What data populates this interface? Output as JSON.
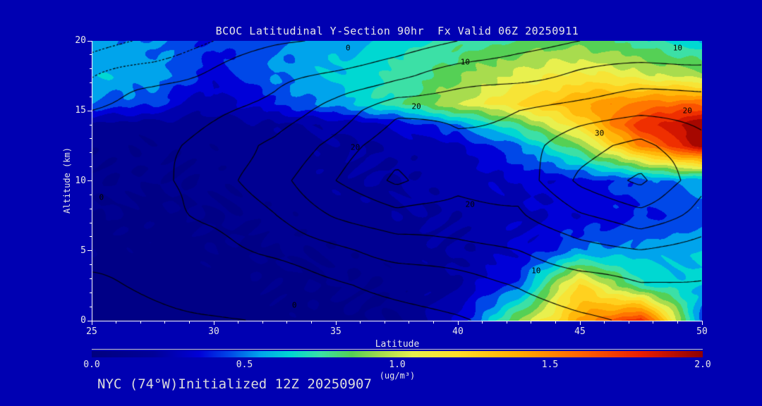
{
  "title": "BCOC Latitudinal Y-Section 90hr  Fx Valid 06Z 20250911",
  "footer": "NYC (74°W)Initialized 12Z 20250907",
  "axes": {
    "x": {
      "label": "Latitude",
      "min": 25,
      "max": 50,
      "major_ticks": [
        25,
        30,
        35,
        40,
        45,
        50
      ],
      "minor_step": 1
    },
    "y": {
      "label": "Altitude (km)",
      "min": 0,
      "max": 20,
      "major_ticks": [
        0,
        5,
        10,
        15,
        20
      ],
      "minor_step": 1
    }
  },
  "colorbar": {
    "min": 0.0,
    "max": 2.0,
    "tick_labels": [
      "0.0",
      "0.5",
      "1.0",
      "1.5",
      "2.0"
    ],
    "units": "(ug/m³)"
  },
  "colors": {
    "background": "#0000b2",
    "axis": "#ffffff",
    "text": "#e8e8e8",
    "contour": "#000000",
    "fill_low": "#000080"
  },
  "chart_data": {
    "type": "filled_contour",
    "title": "BCOC Latitudinal Y-Section 90hr  Fx Valid 06Z 20250911",
    "xlabel": "Latitude",
    "ylabel": "Altitude (km)",
    "xlim": [
      25,
      50
    ],
    "ylim": [
      0,
      20
    ],
    "fill_units": "ug/m3",
    "fill_range": [
      0.0,
      2.0
    ],
    "fill_level_step": 0.1,
    "colormap": [
      [
        0.0,
        "#000080"
      ],
      [
        0.2,
        "#000098"
      ],
      [
        0.35,
        "#0000d8"
      ],
      [
        0.45,
        "#0048e8"
      ],
      [
        0.55,
        "#00a4ec"
      ],
      [
        0.65,
        "#00d8d2"
      ],
      [
        0.75,
        "#3ce0a6"
      ],
      [
        0.85,
        "#55d055"
      ],
      [
        0.95,
        "#a8dc4e"
      ],
      [
        1.05,
        "#e8f04e"
      ],
      [
        1.2,
        "#ffde2a"
      ],
      [
        1.4,
        "#ffac00"
      ],
      [
        1.6,
        "#ff6400"
      ],
      [
        1.8,
        "#ea1e00"
      ],
      [
        2.0,
        "#8f0000"
      ]
    ],
    "fill": {
      "note": "BCOC concentration grid, rows ordered by ascending altitude",
      "lats": [
        25,
        27.5,
        30,
        32.5,
        35,
        37.5,
        40,
        42.5,
        45,
        47.5,
        50
      ],
      "alts": [
        0,
        2.5,
        5,
        7.5,
        10,
        12.5,
        14,
        15.5,
        17.5,
        20
      ],
      "values": [
        [
          0.05,
          0.05,
          0.05,
          0.06,
          0.08,
          0.1,
          0.3,
          0.9,
          1.4,
          1.8,
          0.45
        ],
        [
          0.06,
          0.05,
          0.06,
          0.08,
          0.1,
          0.12,
          0.2,
          0.45,
          1.25,
          0.7,
          0.6
        ],
        [
          0.08,
          0.06,
          0.08,
          0.1,
          0.12,
          0.15,
          0.2,
          0.3,
          0.5,
          0.55,
          0.6
        ],
        [
          0.1,
          0.08,
          0.1,
          0.12,
          0.15,
          0.18,
          0.22,
          0.28,
          0.32,
          0.38,
          0.45
        ],
        [
          0.12,
          0.1,
          0.12,
          0.15,
          0.18,
          0.2,
          0.25,
          0.3,
          0.35,
          0.45,
          0.55
        ],
        [
          0.13,
          0.12,
          0.13,
          0.15,
          0.18,
          0.22,
          0.28,
          0.5,
          0.9,
          1.5,
          1.95
        ],
        [
          0.15,
          0.14,
          0.15,
          0.18,
          0.22,
          0.3,
          0.5,
          0.8,
          1.2,
          1.75,
          2.0
        ],
        [
          0.5,
          0.42,
          0.22,
          0.4,
          0.55,
          0.75,
          1.0,
          1.2,
          1.4,
          1.55,
          1.6
        ],
        [
          0.6,
          0.55,
          0.35,
          0.5,
          0.62,
          0.72,
          0.88,
          1.05,
          1.15,
          1.05,
          0.95
        ],
        [
          0.55,
          0.5,
          0.4,
          0.5,
          0.55,
          0.65,
          0.75,
          0.8,
          0.85,
          0.75,
          0.6
        ]
      ]
    },
    "overlay_contours": {
      "note": "black line-contour field, rows ordered by ascending altitude, dashed below zero",
      "lats": [
        25,
        27.5,
        30,
        32.5,
        35,
        37.5,
        40,
        42.5,
        45,
        47.5,
        50
      ],
      "alts": [
        0,
        2.5,
        5,
        7.5,
        10,
        12.5,
        15,
        17.5,
        20
      ],
      "values": [
        [
          -1,
          -0.6,
          -0.2,
          0.4,
          1.5,
          3,
          4.5,
          6.5,
          9,
          11,
          10
        ],
        [
          0,
          0.8,
          1.5,
          2.5,
          4,
          6,
          8,
          10,
          13,
          15,
          14
        ],
        [
          1,
          2,
          3.5,
          6,
          9,
          12,
          13.5,
          15,
          18,
          20,
          18
        ],
        [
          1,
          3,
          6,
          10,
          15,
          19,
          18,
          19,
          25,
          28,
          23
        ],
        [
          0.5,
          3.5,
          8,
          13,
          20,
          26,
          21,
          22,
          31,
          36,
          27
        ],
        [
          1,
          3,
          7,
          11,
          17,
          23,
          21,
          22,
          28,
          32,
          26
        ],
        [
          0,
          1.5,
          4,
          7,
          12,
          19,
          19,
          20,
          22,
          24,
          24
        ],
        [
          -2.5,
          -1,
          1,
          3,
          6,
          9,
          12,
          14,
          16,
          17,
          17
        ],
        [
          -5,
          -3.5,
          -2,
          -0.5,
          0.5,
          2,
          5,
          8,
          10,
          11,
          12
        ]
      ],
      "levels": [
        -4,
        -2,
        0,
        5,
        10,
        15,
        20,
        25,
        30,
        35
      ],
      "negative_dashed": true
    },
    "contour_labels": [
      {
        "text": "0",
        "lat": 35.5,
        "alt": 19.5
      },
      {
        "text": "10",
        "lat": 40.3,
        "alt": 18.5
      },
      {
        "text": "10",
        "lat": 49.0,
        "alt": 19.5
      },
      {
        "text": "20",
        "lat": 38.3,
        "alt": 15.3
      },
      {
        "text": "20",
        "lat": 49.4,
        "alt": 15.0
      },
      {
        "text": "30",
        "lat": 45.8,
        "alt": 13.4
      },
      {
        "text": "20",
        "lat": 35.8,
        "alt": 12.4
      },
      {
        "text": "20",
        "lat": 40.5,
        "alt": 8.3
      },
      {
        "text": "0",
        "lat": 25.4,
        "alt": 8.8
      },
      {
        "text": "0",
        "lat": 33.3,
        "alt": 1.1
      },
      {
        "text": "10",
        "lat": 43.2,
        "alt": 3.6
      }
    ]
  }
}
